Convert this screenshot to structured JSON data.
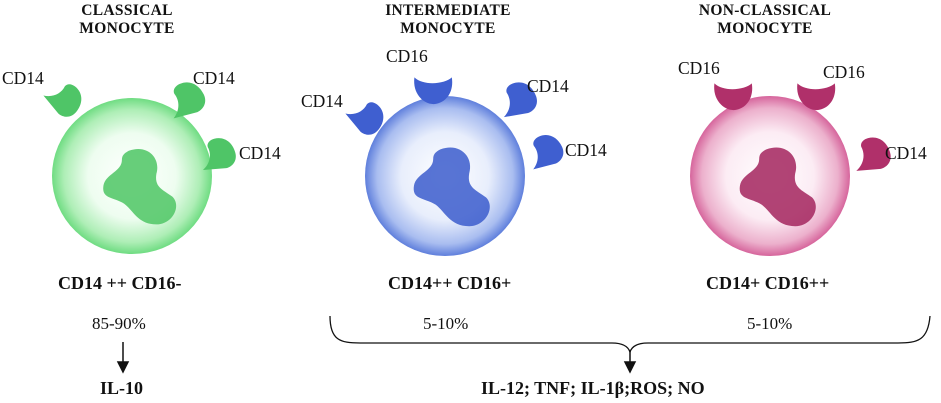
{
  "columns": [
    {
      "title_line1": "CLASSICAL",
      "title_line2": "MONOCYTE",
      "receptors": [
        "CD14",
        "CD14",
        "CD14"
      ],
      "phenotype": "CD14 ++ CD16-",
      "percent": "85-90%"
    },
    {
      "title_line1": "INTERMEDIATE",
      "title_line2": "MONOCYTE",
      "receptors": [
        "CD16",
        "CD14",
        "CD14",
        "CD14"
      ],
      "phenotype": "CD14++ CD16+",
      "percent": "5-10%"
    },
    {
      "title_line1": "NON-CLASSICAL",
      "title_line2": "MONOCYTE",
      "receptors": [
        "CD16",
        "CD16",
        "CD14"
      ],
      "phenotype": "CD14+ CD16++",
      "percent": "5-10%"
    }
  ],
  "outputs": {
    "classical": "IL-10",
    "others": "IL-12; TNF; IL-1β;ROS; NO"
  },
  "colors": {
    "classical": "#5fd37a",
    "intermediate": "#3f5fd0",
    "nonclassical": "#b0306a"
  }
}
